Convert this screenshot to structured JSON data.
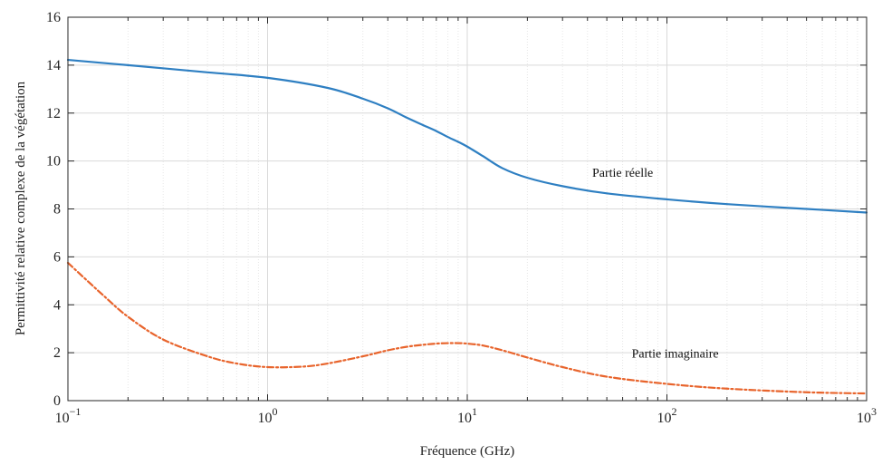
{
  "chart_data": {
    "type": "line",
    "xscale": "log",
    "xlim": [
      0.1,
      1000
    ],
    "ylim": [
      0,
      16
    ],
    "grid": true,
    "minor_grid": true,
    "xlabel": "Fréquence (GHz)",
    "ylabel": "Permittivité relative complexe de la végétation",
    "x_ticks": [
      {
        "value": 0.1,
        "base": "10",
        "exp": "−1"
      },
      {
        "value": 1,
        "base": "10",
        "exp": "0"
      },
      {
        "value": 10,
        "base": "10",
        "exp": "1"
      },
      {
        "value": 100,
        "base": "10",
        "exp": "2"
      },
      {
        "value": 1000,
        "base": "10",
        "exp": "3"
      }
    ],
    "y_ticks": [
      "0",
      "2",
      "4",
      "6",
      "8",
      "10",
      "12",
      "14",
      "16"
    ],
    "series": [
      {
        "name": "Partie réelle",
        "color": "#2e7fc2",
        "dash": "solid",
        "x": [
          0.1,
          0.2,
          0.5,
          1,
          2,
          3,
          4,
          5,
          6,
          7,
          8,
          9,
          10,
          12,
          15,
          20,
          30,
          50,
          100,
          200,
          500,
          1000
        ],
        "y": [
          14.22,
          14.0,
          13.7,
          13.47,
          13.05,
          12.6,
          12.2,
          11.8,
          11.5,
          11.25,
          11.0,
          10.8,
          10.6,
          10.2,
          9.7,
          9.3,
          8.95,
          8.65,
          8.4,
          8.2,
          8.0,
          7.85
        ]
      },
      {
        "name": "Partie imaginaire",
        "color": "#e8642c",
        "dash": "dashdot",
        "x": [
          0.1,
          0.15,
          0.2,
          0.3,
          0.5,
          0.7,
          1,
          1.5,
          2,
          3,
          4,
          5,
          6,
          7,
          8,
          9,
          10,
          12,
          15,
          20,
          30,
          50,
          100,
          200,
          500,
          1000
        ],
        "y": [
          5.75,
          4.4,
          3.5,
          2.55,
          1.85,
          1.55,
          1.4,
          1.42,
          1.55,
          1.85,
          2.1,
          2.25,
          2.33,
          2.38,
          2.4,
          2.4,
          2.38,
          2.3,
          2.1,
          1.8,
          1.4,
          1.0,
          0.7,
          0.5,
          0.35,
          0.3
        ]
      }
    ],
    "annotations": [
      {
        "text": "Partie réelle",
        "x": 60,
        "y": 9.35
      },
      {
        "text": "Partie imaginaire",
        "x": 110,
        "y": 1.8
      }
    ]
  }
}
